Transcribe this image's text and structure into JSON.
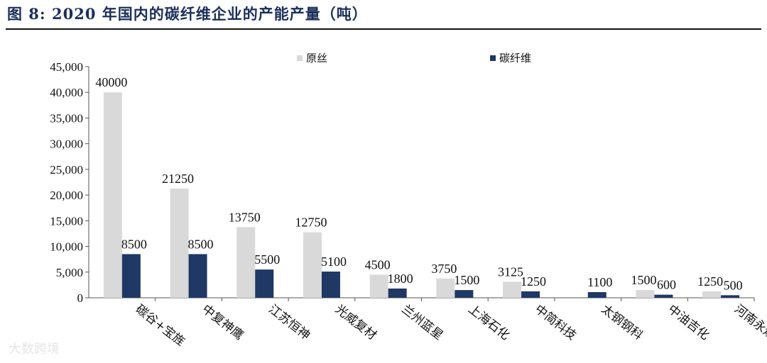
{
  "title": "图 8:  2020 年国内的碳纤维企业的产能产量（吨）",
  "watermark": "大数跨境",
  "colors": {
    "raw_silk": "#d9d9d9",
    "carbon_fiber": "#1f3864"
  },
  "chart_data": {
    "type": "bar",
    "title": "图 8:  2020 年国内的碳纤维企业的产能产量（吨）",
    "xlabel": "",
    "ylabel": "",
    "ylim": [
      0,
      45000
    ],
    "yticks": [
      "0",
      "5,000",
      "10,000",
      "15,000",
      "20,000",
      "25,000",
      "30,000",
      "35,000",
      "40,000",
      "45,000"
    ],
    "grid": false,
    "legend_position": "top",
    "categories": [
      "碳谷+宝旌",
      "中复神鹰",
      "江苏恒神",
      "光威复材",
      "兰州蓝星",
      "上海石化",
      "中简科技",
      "太钢钢科",
      "中油吉化",
      "河南永煤"
    ],
    "series": [
      {
        "name": "原丝",
        "values": [
          40000,
          21250,
          13750,
          12750,
          4500,
          3750,
          3125,
          null,
          1500,
          1250
        ]
      },
      {
        "name": "碳纤维",
        "values": [
          8500,
          8500,
          5500,
          5100,
          1800,
          1500,
          1250,
          1100,
          600,
          500
        ]
      }
    ]
  }
}
